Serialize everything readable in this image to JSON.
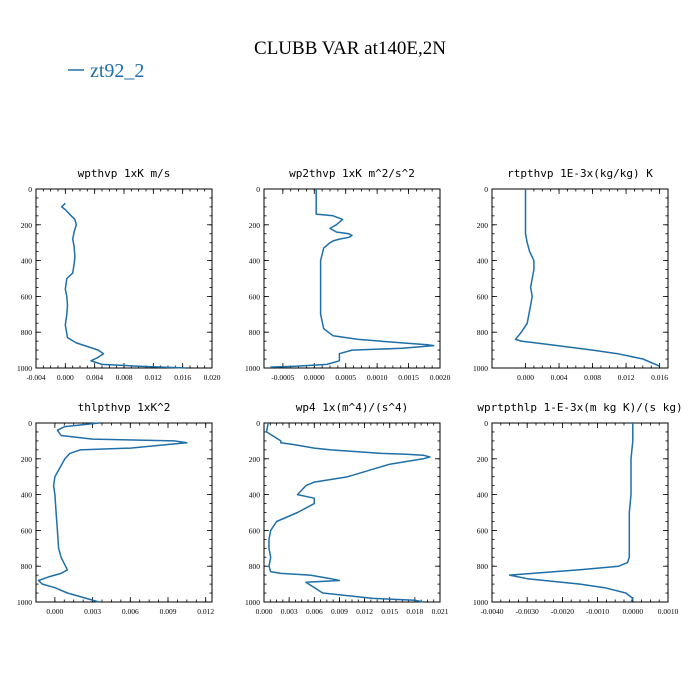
{
  "figure": {
    "title": "CLUBB VAR at140E,2N",
    "legend": [
      {
        "name": "zt92_2",
        "color": "#1f6fa8"
      }
    ]
  },
  "chart_data": [
    {
      "type": "line",
      "title": "wpthvp  1xK m/s",
      "x_ticks": [
        "-0.004",
        "0.000",
        "0.004",
        "0.008",
        "0.012",
        "0.016",
        "0.020"
      ],
      "xlim": [
        -0.004,
        0.02
      ],
      "y_ticks": [
        "0",
        "200",
        "400",
        "600",
        "800",
        "1000"
      ],
      "ylim": [
        0,
        1000
      ],
      "y_inverted": true,
      "series": [
        {
          "name": "zt92_2",
          "color": "#1f6fa8",
          "x": [
            0.0,
            -0.0005,
            0.0,
            0.0008,
            0.0013,
            0.0015,
            0.0012,
            0.001,
            0.0012,
            0.0013,
            0.0012,
            0.001,
            0.0002,
            0.0,
            0.0002,
            0.0003,
            0.0002,
            0.0,
            0.0003,
            0.0015,
            0.003,
            0.0045,
            0.0052,
            0.0045,
            0.0035,
            0.005,
            0.01,
            0.0165
          ],
          "y": [
            80,
            100,
            115,
            150,
            170,
            200,
            240,
            280,
            320,
            380,
            420,
            470,
            500,
            560,
            600,
            650,
            700,
            760,
            830,
            860,
            880,
            900,
            920,
            940,
            960,
            980,
            990,
            1000
          ]
        }
      ]
    },
    {
      "type": "line",
      "title": "wp2thvp  1xK m^2/s^2",
      "x_ticks": [
        "-0.0005",
        "0.0000",
        "0.0005",
        "0.0010",
        "0.0015",
        "0.0020"
      ],
      "xlim": [
        -0.0008,
        0.002
      ],
      "y_ticks": [
        "0",
        "200",
        "400",
        "600",
        "800",
        "1000"
      ],
      "ylim": [
        0,
        1000
      ],
      "y_inverted": true,
      "series": [
        {
          "name": "zt92_2",
          "color": "#1f6fa8",
          "x": [
            3e-05,
            3e-05,
            3e-05,
            0.0003,
            0.00045,
            0.00035,
            0.00025,
            0.00035,
            0.00055,
            0.0006,
            0.00055,
            0.0004,
            0.0003,
            0.00025,
            0.00015,
            0.0001,
            0.0001,
            0.0001,
            0.0001,
            0.0001,
            0.0001,
            0.00015,
            0.0003,
            0.0007,
            0.0014,
            0.0018,
            0.0019,
            0.0014,
            0.0006,
            0.0004,
            0.0004,
            0.0002,
            -0.0003,
            -0.0007
          ],
          "y": [
            0,
            80,
            140,
            150,
            170,
            200,
            220,
            240,
            250,
            260,
            270,
            280,
            290,
            300,
            330,
            400,
            450,
            500,
            550,
            600,
            700,
            780,
            820,
            840,
            860,
            870,
            875,
            890,
            900,
            920,
            960,
            980,
            990,
            995
          ]
        }
      ]
    },
    {
      "type": "line",
      "title": "rtpthvp  1E-3x(kg/kg) K",
      "x_ticks": [
        "0.000",
        "0.004",
        "0.008",
        "0.012",
        "0.016"
      ],
      "xlim": [
        -0.004,
        0.017
      ],
      "y_ticks": [
        "0",
        "200",
        "400",
        "600",
        "800",
        "1000"
      ],
      "ylim": [
        0,
        1000
      ],
      "y_inverted": true,
      "series": [
        {
          "name": "zt92_2",
          "color": "#1f6fa8",
          "x": [
            0.0,
            0.0,
            0.0,
            0.0002,
            0.0005,
            0.001,
            0.001,
            0.0008,
            0.0006,
            0.0008,
            0.0006,
            0.0004,
            0.0002,
            -0.0005,
            -0.0012,
            -0.0005,
            0.003,
            0.008,
            0.011,
            0.014,
            0.016
          ],
          "y": [
            0,
            150,
            250,
            300,
            350,
            400,
            450,
            500,
            550,
            600,
            650,
            700,
            750,
            800,
            840,
            850,
            870,
            900,
            920,
            950,
            990
          ]
        }
      ]
    },
    {
      "type": "line",
      "title": "thlpthvp  1xK^2",
      "x_ticks": [
        "0.000",
        "0.003",
        "0.006",
        "0.009",
        "0.012"
      ],
      "xlim": [
        -0.0015,
        0.0125
      ],
      "y_ticks": [
        "0",
        "200",
        "400",
        "600",
        "800",
        "1000"
      ],
      "ylim": [
        0,
        1000
      ],
      "y_inverted": true,
      "series": [
        {
          "name": "zt92_2",
          "color": "#1f6fa8",
          "x": [
            0.0035,
            0.0008,
            0.0002,
            0.0005,
            0.003,
            0.0095,
            0.0105,
            0.009,
            0.006,
            0.002,
            0.0012,
            0.0008,
            0.0004,
            0.0,
            -0.0001,
            0.0,
            0.0001,
            0.0002,
            0.0003,
            0.0005,
            0.001,
            0.0005,
            -0.0005,
            -0.0013,
            -0.001,
            0.0,
            0.001,
            0.0025,
            0.0035
          ],
          "y": [
            0,
            20,
            40,
            70,
            90,
            100,
            110,
            120,
            140,
            150,
            170,
            200,
            250,
            300,
            350,
            400,
            500,
            600,
            700,
            750,
            820,
            840,
            860,
            880,
            900,
            920,
            950,
            980,
            1000
          ]
        }
      ]
    },
    {
      "type": "line",
      "title": "wp4  1x(m^4)/(s^4)",
      "x_ticks": [
        "0.000",
        "0.003",
        "0.006",
        "0.009",
        "0.012",
        "0.015",
        "0.018",
        "0.021"
      ],
      "xlim": [
        0,
        0.021
      ],
      "y_ticks": [
        "0",
        "200",
        "400",
        "600",
        "800",
        "1000"
      ],
      "ylim": [
        0,
        1000
      ],
      "y_inverted": true,
      "series": [
        {
          "name": "zt92_2",
          "color": "#1f6fa8",
          "x": [
            0.0005,
            0.0003,
            0.002,
            0.002,
            0.0035,
            0.006,
            0.008,
            0.011,
            0.014,
            0.017,
            0.019,
            0.0198,
            0.019,
            0.015,
            0.01,
            0.006,
            0.005,
            0.004,
            0.006,
            0.006,
            0.004,
            0.0015,
            0.0008,
            0.0006,
            0.0006,
            0.0008,
            0.0006,
            0.0008,
            0.002,
            0.0055,
            0.008,
            0.009,
            0.005,
            0.007,
            0.013,
            0.018,
            0.019
          ],
          "y": [
            0,
            50,
            100,
            110,
            120,
            140,
            150,
            160,
            170,
            175,
            180,
            190,
            200,
            230,
            300,
            330,
            350,
            400,
            420,
            450,
            500,
            550,
            600,
            650,
            700,
            750,
            800,
            830,
            840,
            850,
            870,
            880,
            890,
            950,
            980,
            990,
            1000
          ]
        }
      ]
    },
    {
      "type": "line",
      "title": "wprtpthlp  1-E-3x(m kg K)/(s kg)",
      "x_ticks": [
        "-0.0040",
        "-0.0030",
        "-0.0020",
        "-0.0010",
        "0.0000",
        "0.0010"
      ],
      "xlim": [
        -0.004,
        0.001
      ],
      "y_ticks": [
        "0",
        "200",
        "400",
        "600",
        "800",
        "1000"
      ],
      "ylim": [
        0,
        1000
      ],
      "y_inverted": true,
      "series": [
        {
          "name": "zt92_2",
          "color": "#1f6fa8",
          "x": [
            0.0,
            0.0,
            -5e-05,
            -5e-05,
            -5e-05,
            -0.0001,
            -0.0001,
            -0.0001,
            -0.0001,
            -0.00015,
            -0.0004,
            -0.0015,
            -0.0035,
            -0.003,
            -0.0015,
            -0.0008,
            -0.0002,
            0.0,
            -5e-05
          ],
          "y": [
            0,
            100,
            200,
            300,
            400,
            500,
            600,
            700,
            750,
            780,
            800,
            820,
            850,
            870,
            900,
            920,
            950,
            980,
            1000
          ]
        }
      ]
    }
  ]
}
